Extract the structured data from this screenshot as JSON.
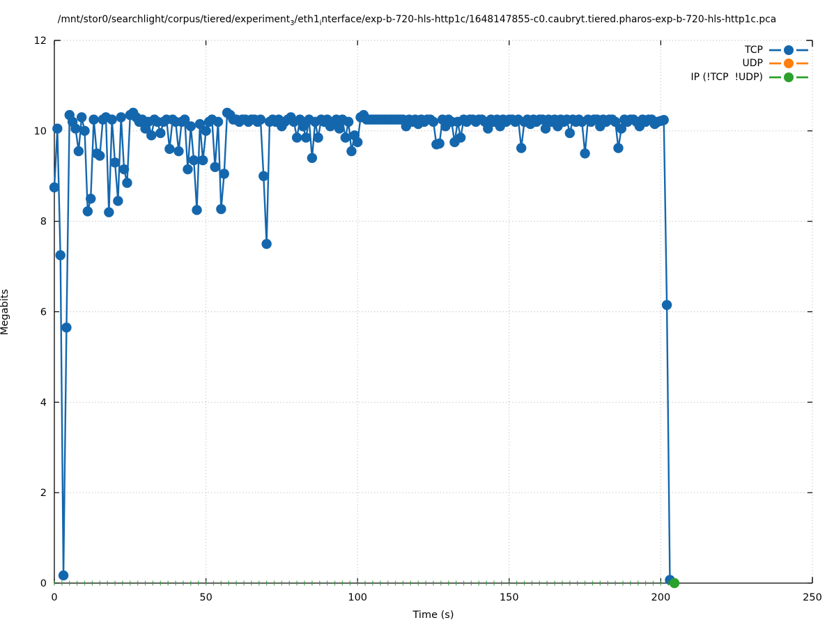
{
  "title": {
    "part1": "/mnt/stor0/searchlight/corpus/tiered/experiment",
    "sub1": "3",
    "part2": "/eth1",
    "sub2": "i",
    "part3": "nterface/exp-b-720-hls-http1c/1648147855-c0.caubryt.tiered.pharos-exp-b-720-hls-http1c.pca"
  },
  "chart_data": {
    "type": "line",
    "xlabel": "Time (s)",
    "ylabel": "Megabits",
    "xlim": [
      0,
      250
    ],
    "ylim": [
      0,
      12
    ],
    "x_ticks": [
      0,
      50,
      100,
      150,
      200,
      250
    ],
    "y_ticks": [
      0,
      2,
      4,
      6,
      8,
      10,
      12
    ],
    "grid": true,
    "legend_position": "top-right-inside",
    "series": [
      {
        "name": "TCP",
        "color": "#1467ad",
        "style": "linespoints",
        "x_start": 0,
        "x_step": 1,
        "values": [
          8.75,
          10.05,
          7.25,
          0.17,
          5.65,
          10.35,
          10.2,
          10.05,
          9.55,
          10.3,
          10.0,
          8.22,
          8.5,
          10.25,
          9.5,
          9.45,
          10.25,
          10.3,
          8.2,
          10.25,
          9.3,
          8.45,
          10.3,
          9.15,
          8.85,
          10.35,
          10.4,
          10.3,
          10.2,
          10.25,
          10.05,
          10.2,
          9.9,
          10.25,
          10.2,
          9.95,
          10.2,
          10.25,
          9.6,
          10.25,
          10.2,
          9.55,
          10.2,
          10.25,
          9.15,
          10.1,
          9.35,
          8.25,
          10.15,
          9.35,
          10.0,
          10.2,
          10.25,
          9.2,
          10.2,
          8.27,
          9.05,
          10.4,
          10.35,
          10.25,
          10.25,
          10.2,
          10.25,
          10.25,
          10.2,
          10.25,
          10.25,
          10.2,
          10.25,
          9.0,
          7.5,
          10.2,
          10.25,
          10.2,
          10.25,
          10.1,
          10.2,
          10.25,
          10.3,
          10.2,
          9.85,
          10.25,
          10.1,
          9.85,
          10.25,
          9.4,
          10.2,
          9.85,
          10.25,
          10.2,
          10.25,
          10.1,
          10.2,
          10.25,
          10.05,
          10.25,
          9.85,
          10.2,
          9.55,
          9.9,
          9.75,
          10.3,
          10.35,
          10.25,
          10.25,
          10.25,
          10.25,
          10.25,
          10.25,
          10.25,
          10.25,
          10.25,
          10.25,
          10.25,
          10.25,
          10.25,
          10.1,
          10.25,
          10.2,
          10.25,
          10.15,
          10.25,
          10.2,
          10.25,
          10.25,
          10.2,
          9.7,
          9.72,
          10.25,
          10.1,
          10.25,
          10.2,
          9.75,
          10.2,
          9.85,
          10.25,
          10.2,
          10.25,
          10.25,
          10.2,
          10.25,
          10.25,
          10.2,
          10.05,
          10.25,
          10.2,
          10.25,
          10.1,
          10.25,
          10.2,
          10.25,
          10.25,
          10.2,
          10.25,
          9.62,
          10.2,
          10.25,
          10.15,
          10.25,
          10.2,
          10.25,
          10.25,
          10.05,
          10.25,
          10.2,
          10.25,
          10.1,
          10.25,
          10.2,
          10.25,
          9.95,
          10.25,
          10.2,
          10.25,
          10.2,
          9.5,
          10.25,
          10.2,
          10.25,
          10.25,
          10.1,
          10.25,
          10.2,
          10.25,
          10.25,
          10.2,
          9.62,
          10.05,
          10.25,
          10.2,
          10.25,
          10.25,
          10.2,
          10.1,
          10.25,
          10.2,
          10.25,
          10.25,
          10.15,
          10.2,
          10.22,
          10.24,
          6.15,
          0.07
        ]
      },
      {
        "name": "UDP",
        "color": "#ff7f0e",
        "style": "linespoints",
        "values": []
      },
      {
        "name": "IP (!TCP  !UDP)",
        "color": "#2ca02c",
        "style": "linespoints",
        "zero_marks": {
          "t_start": 0,
          "t_end": 202.5,
          "t_step": 2.5,
          "value": 0
        },
        "points": [
          {
            "t": 204.5,
            "value": 0
          }
        ]
      }
    ]
  }
}
